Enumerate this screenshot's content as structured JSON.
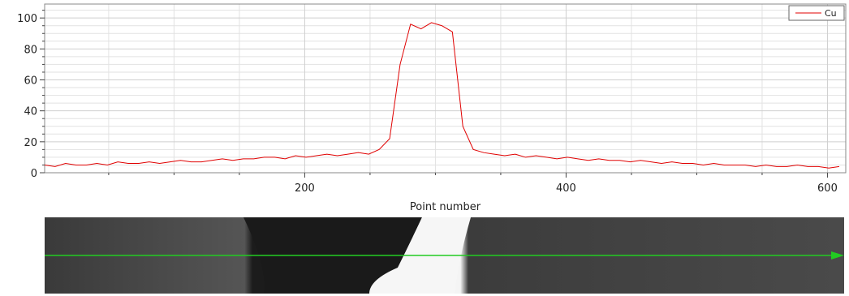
{
  "chart_data": {
    "type": "line",
    "x_label": "Point number",
    "x": [
      1,
      9,
      17,
      25,
      33,
      41,
      49,
      57,
      65,
      73,
      81,
      89,
      97,
      105,
      113,
      121,
      129,
      137,
      145,
      153,
      161,
      169,
      177,
      185,
      193,
      201,
      209,
      217,
      225,
      233,
      241,
      249,
      257,
      265,
      273,
      281,
      289,
      297,
      305,
      313,
      321,
      329,
      337,
      345,
      353,
      361,
      369,
      377,
      385,
      393,
      401,
      409,
      417,
      425,
      433,
      441,
      449,
      457,
      465,
      473,
      481,
      489,
      497,
      505,
      513,
      521,
      529,
      537,
      545,
      553,
      561,
      569,
      577,
      585,
      593,
      601,
      609
    ],
    "series": [
      {
        "name": "Cu",
        "color": "#e00000",
        "values": [
          5,
          4,
          6,
          5,
          5,
          6,
          5,
          7,
          6,
          6,
          7,
          6,
          7,
          8,
          7,
          7,
          8,
          9,
          8,
          9,
          9,
          10,
          10,
          9,
          11,
          10,
          11,
          12,
          11,
          12,
          13,
          12,
          15,
          22,
          70,
          96,
          93,
          97,
          95,
          91,
          30,
          15,
          13,
          12,
          11,
          12,
          10,
          11,
          10,
          9,
          10,
          9,
          8,
          9,
          8,
          8,
          7,
          8,
          7,
          6,
          7,
          6,
          6,
          5,
          6,
          5,
          5,
          5,
          4,
          5,
          4,
          4,
          5,
          4,
          4,
          3,
          4
        ]
      }
    ],
    "xlim": [
      1,
      614
    ],
    "ylim": [
      0,
      109
    ],
    "xticks": [
      200,
      400,
      600
    ],
    "yticks": [
      0,
      20,
      40,
      60,
      80,
      100
    ],
    "x_minor_ticks": [
      50,
      100,
      150,
      250,
      300,
      350,
      450,
      500,
      550
    ],
    "y_minor_ticks": [
      5,
      10,
      15,
      25,
      30,
      35,
      45,
      50,
      55,
      65,
      70,
      75,
      85,
      90,
      95,
      105
    ],
    "grid": true,
    "legend": "upper right"
  }
}
